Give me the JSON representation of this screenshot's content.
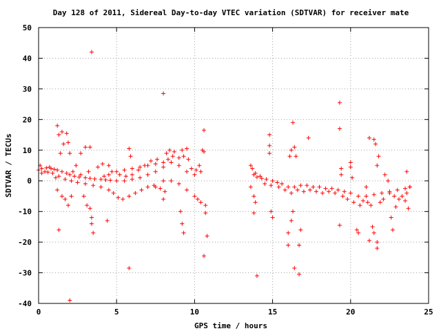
{
  "chart_data": {
    "type": "scatter",
    "title": "Day 128 of 2011, Sidereal Day-to-day VTEC variation (SDTVAR) for receiver mate",
    "xlabel": "GPS time / hours",
    "ylabel": "SDTVAR / TECUs",
    "xlim": [
      0,
      25
    ],
    "ylim": [
      -40,
      50
    ],
    "xticks": [
      "0",
      "5",
      "10",
      "15",
      "20",
      "25"
    ],
    "yticks": [
      "-40",
      "-30",
      "-20",
      "-10",
      "0",
      "10",
      "20",
      "30",
      "40",
      "50"
    ],
    "grid": true,
    "marker": "plus",
    "colors": {
      "points": "#ff0000",
      "axes": "#000000",
      "grid": "#a0a0a0"
    },
    "series": [
      {
        "points": [
          [
            0,
            3.5
          ],
          [
            0.2,
            4
          ],
          [
            0.5,
            4.2
          ],
          [
            0.8,
            4
          ],
          [
            1.0,
            3.8
          ],
          [
            1.2,
            3.5
          ],
          [
            1.5,
            3
          ],
          [
            1.8,
            2.5
          ],
          [
            2.0,
            2
          ],
          [
            2.3,
            1.5
          ],
          [
            2.6,
            1.2
          ],
          [
            3.0,
            1
          ],
          [
            3.3,
            0.8
          ],
          [
            3.6,
            0.6
          ],
          [
            4.0,
            0.5
          ],
          [
            4.3,
            0.3
          ],
          [
            4.6,
            0.2
          ],
          [
            5.0,
            0
          ],
          [
            5.5,
            0
          ],
          [
            6.0,
            0.5
          ],
          [
            6.5,
            1
          ],
          [
            7.0,
            2
          ],
          [
            7.5,
            3
          ],
          [
            8.0,
            4.5
          ],
          [
            8.5,
            6
          ],
          [
            9.0,
            5
          ],
          [
            9.5,
            3
          ],
          [
            10.0,
            2
          ],
          [
            10.4,
            3
          ],
          [
            0.4,
            3
          ],
          [
            0.6,
            2.8
          ],
          [
            0.9,
            2.5
          ],
          [
            1.3,
            1.5
          ],
          [
            1.7,
            0.5
          ],
          [
            2.1,
            0
          ],
          [
            2.5,
            -0.5
          ],
          [
            3.0,
            -1
          ],
          [
            3.5,
            -1.5
          ],
          [
            4.0,
            -2
          ],
          [
            4.5,
            -3
          ],
          [
            4.8,
            -4
          ],
          [
            5.1,
            -5.5
          ],
          [
            5.4,
            -6
          ],
          [
            5.8,
            -5
          ],
          [
            6.2,
            -4
          ],
          [
            6.6,
            -3
          ],
          [
            7.0,
            -2
          ],
          [
            7.4,
            -1.5
          ],
          [
            7.8,
            -2.5
          ],
          [
            8.1,
            -3.5
          ],
          [
            4.2,
            1.5
          ],
          [
            4.5,
            2
          ],
          [
            5.0,
            3
          ],
          [
            5.5,
            3.5
          ],
          [
            6.0,
            4
          ],
          [
            6.5,
            4.5
          ],
          [
            7.0,
            5
          ],
          [
            7.5,
            5.5
          ],
          [
            8.0,
            6
          ],
          [
            8.3,
            7
          ],
          [
            8.6,
            8
          ],
          [
            9.0,
            7.5
          ],
          [
            7.5,
            -2
          ],
          [
            8.0,
            0
          ],
          [
            8.5,
            0
          ],
          [
            9.0,
            -1
          ],
          [
            9.5,
            -3
          ],
          [
            10.0,
            -5
          ],
          [
            10.2,
            -6
          ],
          [
            10.4,
            -7
          ],
          [
            1.2,
            18
          ],
          [
            1.5,
            16
          ],
          [
            1.8,
            15.5
          ],
          [
            1.3,
            15
          ],
          [
            1.6,
            12
          ],
          [
            1.4,
            9
          ],
          [
            2.0,
            9
          ],
          [
            1.9,
            12.5
          ],
          [
            1.2,
            -3
          ],
          [
            1.5,
            -5
          ],
          [
            1.7,
            -6
          ],
          [
            1.9,
            -8
          ],
          [
            2.1,
            -5
          ],
          [
            1.3,
            -16
          ],
          [
            2.7,
            9
          ],
          [
            3.0,
            11
          ],
          [
            3.3,
            11
          ],
          [
            2.9,
            -5
          ],
          [
            3.1,
            -8
          ],
          [
            3.3,
            -9
          ],
          [
            3.4,
            -12
          ],
          [
            3.4,
            -14
          ],
          [
            3.5,
            -17
          ],
          [
            3.4,
            42
          ],
          [
            2.0,
            -39
          ],
          [
            4.4,
            -13
          ],
          [
            5.8,
            -28.5
          ],
          [
            5.8,
            10.5
          ],
          [
            5.9,
            8
          ],
          [
            8.0,
            28.5
          ],
          [
            8.0,
            -6
          ],
          [
            9.1,
            -10
          ],
          [
            9.2,
            -14
          ],
          [
            9.3,
            -17
          ],
          [
            9.2,
            10
          ],
          [
            9.5,
            10.5
          ],
          [
            10.5,
            10
          ],
          [
            10.6,
            16.5
          ],
          [
            10.6,
            9.5
          ],
          [
            10.7,
            -8
          ],
          [
            10.7,
            -10.5
          ],
          [
            10.8,
            -18
          ],
          [
            10.6,
            -24.5
          ],
          [
            13.6,
            5
          ],
          [
            13.7,
            4
          ],
          [
            13.8,
            2
          ],
          [
            14.0,
            1.2
          ],
          [
            14.3,
            0.8
          ],
          [
            14.6,
            0.5
          ],
          [
            15.0,
            0
          ],
          [
            15.3,
            -0.5
          ],
          [
            15.6,
            -1
          ],
          [
            16.0,
            -2
          ],
          [
            16.4,
            -2
          ],
          [
            16.8,
            -1.5
          ],
          [
            17.2,
            -1.5
          ],
          [
            17.6,
            -2
          ],
          [
            18.0,
            -2
          ],
          [
            18.4,
            -2.5
          ],
          [
            18.8,
            -2.5
          ],
          [
            19.2,
            -3
          ],
          [
            19.6,
            -3.5
          ],
          [
            20.0,
            -4
          ],
          [
            20.5,
            -5
          ],
          [
            21.0,
            -5
          ],
          [
            21.5,
            -4.5
          ],
          [
            22.0,
            -4
          ],
          [
            22.5,
            -3.5
          ],
          [
            23.0,
            -3
          ],
          [
            23.5,
            -2.5
          ],
          [
            23.8,
            -2
          ],
          [
            13.6,
            -2
          ],
          [
            13.8,
            -5
          ],
          [
            13.9,
            -7
          ],
          [
            13.8,
            -10.5
          ],
          [
            14.8,
            15
          ],
          [
            14.8,
            11.5
          ],
          [
            14.8,
            9
          ],
          [
            14.9,
            -10
          ],
          [
            15.0,
            -12
          ],
          [
            16.1,
            8
          ],
          [
            16.2,
            10
          ],
          [
            16.3,
            19
          ],
          [
            16.4,
            11
          ],
          [
            16.5,
            8
          ],
          [
            16.3,
            -10
          ],
          [
            16.2,
            -13
          ],
          [
            16.0,
            -17
          ],
          [
            16.0,
            -21
          ],
          [
            16.4,
            -28.5
          ],
          [
            16.7,
            -30.5
          ],
          [
            16.7,
            -21
          ],
          [
            16.8,
            -16
          ],
          [
            17.3,
            14
          ],
          [
            14.0,
            -31
          ],
          [
            19.3,
            25.5
          ],
          [
            19.3,
            17
          ],
          [
            19.4,
            4
          ],
          [
            19.4,
            2
          ],
          [
            19.3,
            -14.5
          ],
          [
            20.0,
            6
          ],
          [
            20.0,
            4.5
          ],
          [
            20.1,
            1
          ],
          [
            20.4,
            -16
          ],
          [
            20.5,
            -17
          ],
          [
            21.2,
            14
          ],
          [
            21.5,
            13.5
          ],
          [
            21.6,
            12
          ],
          [
            21.8,
            8
          ],
          [
            21.7,
            5
          ],
          [
            21.0,
            -2
          ],
          [
            21.4,
            -15
          ],
          [
            21.5,
            -17
          ],
          [
            21.7,
            -20
          ],
          [
            21.2,
            -19.5
          ],
          [
            21.7,
            -22
          ],
          [
            22.2,
            2
          ],
          [
            22.4,
            0
          ],
          [
            22.5,
            -4
          ],
          [
            22.6,
            -12
          ],
          [
            22.7,
            -16
          ],
          [
            22.9,
            -8.5
          ],
          [
            23.1,
            -6
          ],
          [
            23.6,
            3
          ],
          [
            23.7,
            -9
          ],
          [
            23.5,
            -6.5
          ],
          [
            23.8,
            -2
          ],
          [
            0.1,
            5
          ],
          [
            0.2,
            2.5
          ],
          [
            0.7,
            4.5
          ],
          [
            1.1,
            1
          ],
          [
            2.2,
            3
          ],
          [
            2.4,
            5
          ],
          [
            2.7,
            2
          ],
          [
            3.2,
            3
          ],
          [
            3.8,
            4.5
          ],
          [
            4.1,
            5.5
          ],
          [
            4.5,
            5
          ],
          [
            4.7,
            3
          ],
          [
            5.2,
            2
          ],
          [
            5.6,
            1.5
          ],
          [
            6.0,
            2
          ],
          [
            6.4,
            3.5
          ],
          [
            6.8,
            5
          ],
          [
            7.2,
            6.5
          ],
          [
            7.6,
            7
          ],
          [
            8.2,
            9
          ],
          [
            8.4,
            10
          ],
          [
            8.7,
            9.5
          ],
          [
            9.3,
            8
          ],
          [
            9.6,
            7
          ],
          [
            9.8,
            4
          ],
          [
            10.1,
            3.5
          ],
          [
            10.3,
            5
          ],
          [
            13.9,
            2.5
          ],
          [
            14.2,
            1.5
          ],
          [
            14.5,
            -1
          ],
          [
            14.9,
            -1.5
          ],
          [
            15.4,
            -2
          ],
          [
            15.8,
            -3
          ],
          [
            16.2,
            -4
          ],
          [
            16.6,
            -3
          ],
          [
            17.0,
            -3.5
          ],
          [
            17.4,
            -3
          ],
          [
            17.8,
            -3.5
          ],
          [
            18.2,
            -4
          ],
          [
            18.6,
            -3.5
          ],
          [
            19.0,
            -4
          ],
          [
            19.5,
            -5
          ],
          [
            19.8,
            -6
          ],
          [
            20.2,
            -7
          ],
          [
            20.6,
            -8
          ],
          [
            20.8,
            -6.5
          ],
          [
            21.1,
            -7
          ],
          [
            21.3,
            -8
          ],
          [
            21.9,
            -7
          ],
          [
            22.1,
            -6
          ],
          [
            22.8,
            -5
          ],
          [
            23.3,
            -5
          ],
          [
            23.6,
            -4
          ]
        ]
      }
    ]
  }
}
